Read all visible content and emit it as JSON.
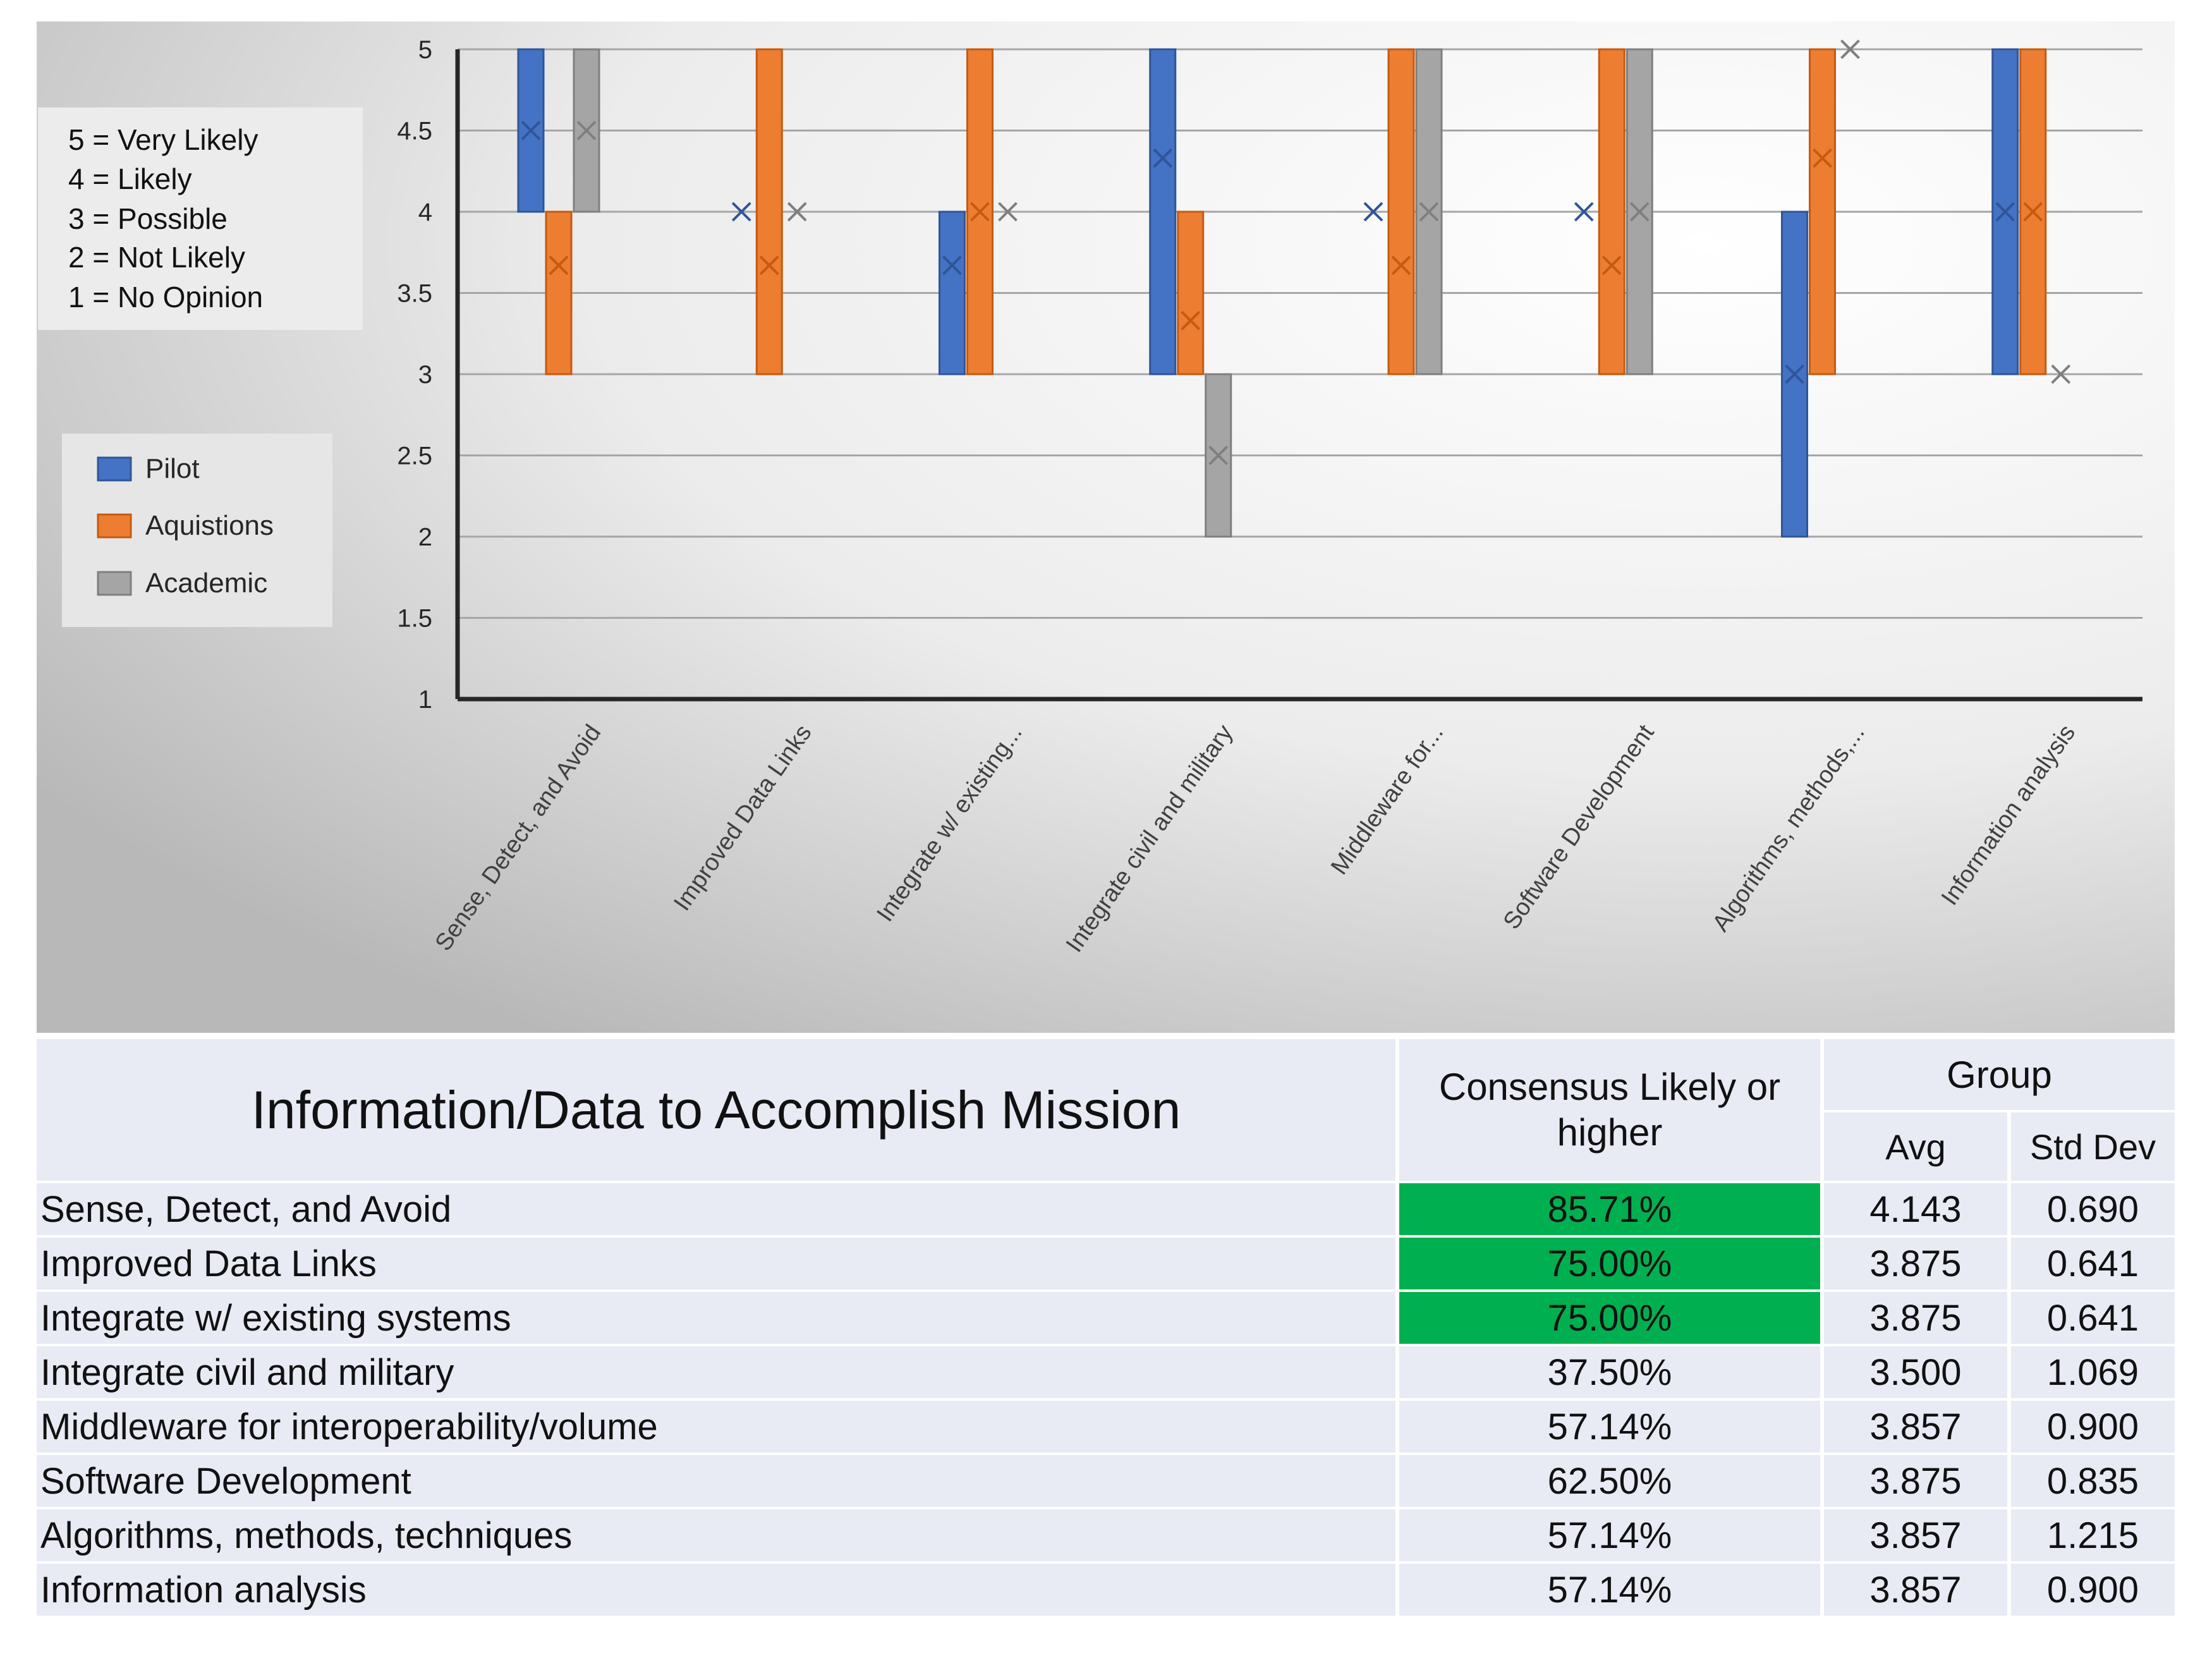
{
  "chart_data": {
    "type": "bar",
    "subtype": "floating-range (min to max) with average marker",
    "ylim": [
      1,
      5
    ],
    "y_ticks": [
      "1",
      "1.5",
      "2",
      "2.5",
      "3",
      "3.5",
      "4",
      "4.5",
      "5"
    ],
    "categories": [
      "Sense, Detect, and Avoid",
      "Improved Data Links",
      "Integrate w/ existing...",
      "Integrate civil and military",
      "Middleware for...",
      "Software Development",
      "Algorithms, methods,...",
      "Information analysis"
    ],
    "series": [
      {
        "name": "Pilot",
        "color": "#4472c4",
        "low": [
          4,
          4,
          3,
          3,
          4,
          4,
          2,
          3
        ],
        "high": [
          5,
          4,
          4,
          5,
          4,
          4,
          4,
          5
        ],
        "avg": [
          4.5,
          4,
          3.67,
          4.33,
          4,
          4,
          3,
          4
        ]
      },
      {
        "name": "Aquistions",
        "color": "#ed7d31",
        "low": [
          3,
          3,
          3,
          3,
          3,
          3,
          3,
          3
        ],
        "high": [
          4,
          5,
          5,
          4,
          5,
          5,
          5,
          5
        ],
        "avg": [
          3.67,
          3.67,
          4,
          3.33,
          3.67,
          3.67,
          4.33,
          4
        ]
      },
      {
        "name": "Academic",
        "color": "#a5a5a5",
        "low": [
          4,
          4,
          4,
          2,
          3,
          3,
          5,
          3
        ],
        "high": [
          5,
          4,
          4,
          3,
          5,
          5,
          5,
          3
        ],
        "avg": [
          4.5,
          4,
          4,
          2.5,
          4,
          4,
          5,
          3
        ]
      }
    ],
    "scale_note": [
      "5 = Very Likely",
      "4 = Likely",
      "3 = Possible",
      "2 = Not Likely",
      "1 = No Opinion"
    ],
    "legend_position": "left"
  },
  "table": {
    "title": "Information/Data to Accomplish Mission",
    "consensus_header": "Consensus Likely or higher",
    "group_header": "Group",
    "avg_header": "Avg",
    "std_header": "Std Dev",
    "highlight_color": "#00b050",
    "rows": [
      {
        "name": "Sense, Detect, and Avoid",
        "consensus": "85.71%",
        "avg": "4.143",
        "std": "0.690",
        "highlight": true
      },
      {
        "name": "Improved Data Links",
        "consensus": "75.00%",
        "avg": "3.875",
        "std": "0.641",
        "highlight": true
      },
      {
        "name": "Integrate w/ existing systems",
        "consensus": "75.00%",
        "avg": "3.875",
        "std": "0.641",
        "highlight": true
      },
      {
        "name": "Integrate civil and military",
        "consensus": "37.50%",
        "avg": "3.500",
        "std": "1.069",
        "highlight": false
      },
      {
        "name": "Middleware for interoperability/volume",
        "consensus": "57.14%",
        "avg": "3.857",
        "std": "0.900",
        "highlight": false
      },
      {
        "name": "Software Development",
        "consensus": "62.50%",
        "avg": "3.875",
        "std": "0.835",
        "highlight": false
      },
      {
        "name": "Algorithms, methods, techniques",
        "consensus": "57.14%",
        "avg": "3.857",
        "std": "1.215",
        "highlight": false
      },
      {
        "name": "Information analysis",
        "consensus": "57.14%",
        "avg": "3.857",
        "std": "0.900",
        "highlight": false
      }
    ]
  }
}
